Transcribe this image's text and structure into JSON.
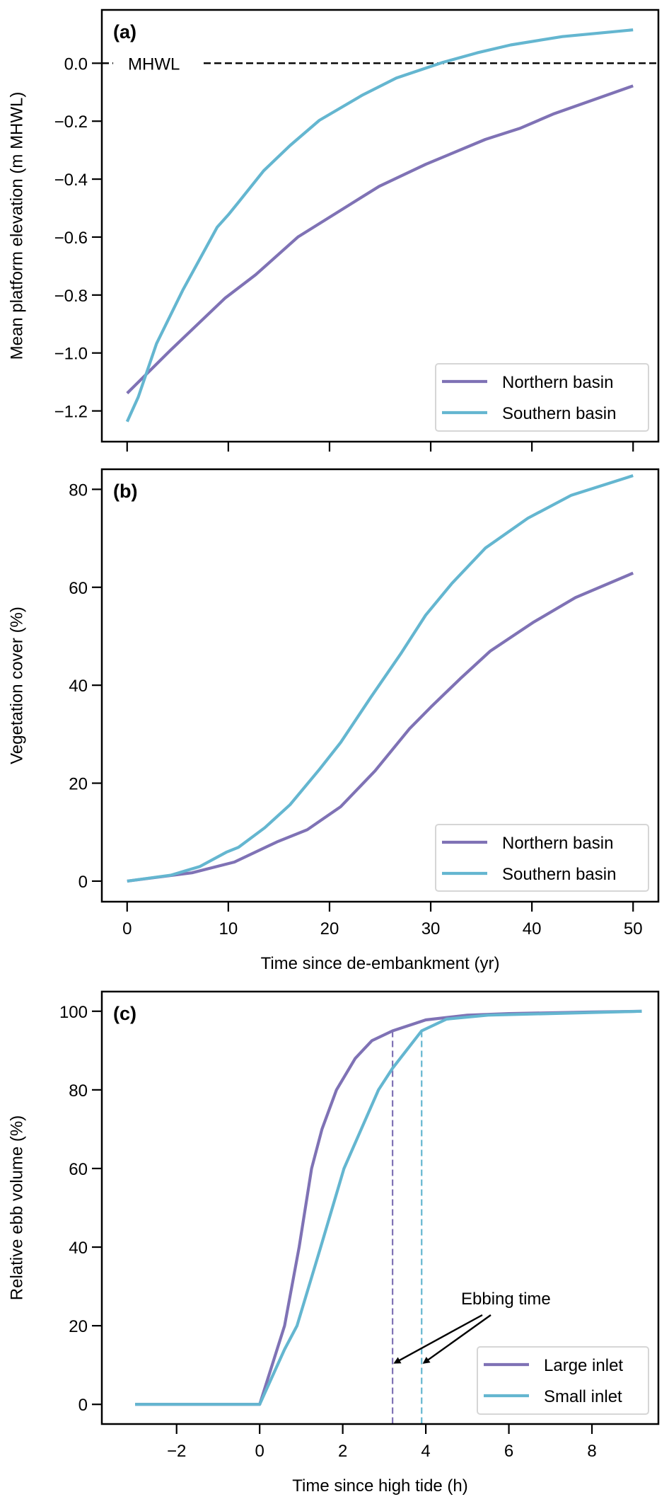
{
  "colors": {
    "northern": "#7f72b5",
    "southern": "#64b6d0",
    "reference": "#000000"
  },
  "chart_data": [
    {
      "panel_label": "(a)",
      "type": "line",
      "xlabel": "",
      "ylabel": "Mean platform elevation (m MHWL)",
      "xlim": [
        -2.5,
        52.5
      ],
      "ylim": [
        -1.306,
        0.184
      ],
      "xticks": [
        0,
        10,
        20,
        30,
        40,
        50
      ],
      "xtick_labels": [],
      "yticks": [
        0.0,
        -0.2,
        -0.4,
        -0.6,
        -0.8,
        -1.0,
        -1.2
      ],
      "ytick_labels": [
        "0.0",
        "−0.2",
        "−0.4",
        "−0.6",
        "−0.8",
        "−1.0",
        "−1.2"
      ],
      "reference_line": {
        "y": 0.0,
        "label": "MHWL",
        "style": "dashed"
      },
      "legend": {
        "placement": "lower-right",
        "entries": [
          "Northern basin",
          "Southern basin"
        ]
      },
      "series": [
        {
          "name": "Northern basin",
          "color_key": "northern",
          "x": [
            0,
            4.3,
            9.7,
            12.7,
            16.9,
            22,
            24.9,
            29.5,
            35.4,
            38.8,
            42.2,
            50
          ],
          "y": [
            -1.139,
            -0.99,
            -0.81,
            -0.73,
            -0.599,
            -0.488,
            -0.425,
            -0.349,
            -0.263,
            -0.225,
            -0.174,
            -0.078
          ]
        },
        {
          "name": "Southern basin",
          "color_key": "southern",
          "x": [
            0,
            1.1,
            2.9,
            5.5,
            8.9,
            10.0,
            11.0,
            13.5,
            16.1,
            19.0,
            23.2,
            26.6,
            31.2,
            34.6,
            37.9,
            43,
            50
          ],
          "y": [
            -1.237,
            -1.152,
            -0.968,
            -0.783,
            -0.566,
            -0.523,
            -0.48,
            -0.371,
            -0.284,
            -0.197,
            -0.111,
            -0.051,
            0.003,
            0.036,
            0.063,
            0.092,
            0.115
          ]
        }
      ]
    },
    {
      "panel_label": "(b)",
      "type": "line",
      "xlabel": "Time since de-embankment (yr)",
      "ylabel": "Vegetation cover (%)",
      "xlim": [
        -2.5,
        52.5
      ],
      "ylim": [
        -4.2,
        84.1
      ],
      "xticks": [
        0,
        10,
        20,
        30,
        40,
        50
      ],
      "xtick_labels": [
        "0",
        "10",
        "20",
        "30",
        "40",
        "50"
      ],
      "yticks": [
        0,
        20,
        40,
        60,
        80
      ],
      "ytick_labels": [
        "0",
        "20",
        "40",
        "60",
        "80"
      ],
      "legend": {
        "placement": "lower-right",
        "entries": [
          "Northern basin",
          "Southern basin"
        ]
      },
      "series": [
        {
          "name": "Northern basin",
          "color_key": "northern",
          "x": [
            0,
            6.4,
            10.6,
            14.8,
            17.8,
            21.1,
            24.5,
            27.9,
            30,
            32.9,
            35.9,
            40.1,
            44.3,
            50
          ],
          "y": [
            0,
            1.7,
            3.9,
            8,
            10.5,
            15.2,
            22.5,
            31.1,
            35.5,
            41.3,
            47,
            52.8,
            57.9,
            62.9
          ]
        },
        {
          "name": "Southern basin",
          "color_key": "southern",
          "x": [
            0,
            4.3,
            7.2,
            9.8,
            11,
            13.6,
            16.1,
            19,
            21.1,
            24.1,
            27,
            29.5,
            32.1,
            35.4,
            39.6,
            43.9,
            50
          ],
          "y": [
            0,
            1.2,
            3,
            5.9,
            6.9,
            10.9,
            15.6,
            22.8,
            28.3,
            37.6,
            46.3,
            54.3,
            60.8,
            68,
            74.1,
            78.8,
            82.8
          ]
        }
      ]
    },
    {
      "panel_label": "(c)",
      "type": "line",
      "xlabel": "Time since high tide (h)",
      "ylabel": "Relative ebb volume (%)",
      "xlim": [
        -3.8,
        9.6
      ],
      "ylim": [
        -5,
        105
      ],
      "xticks": [
        -2,
        0,
        2,
        4,
        6,
        8
      ],
      "xtick_labels": [
        "−2",
        "0",
        "2",
        "4",
        "6",
        "8"
      ],
      "yticks": [
        0,
        20,
        40,
        60,
        80,
        100
      ],
      "ytick_labels": [
        "0",
        "20",
        "40",
        "60",
        "80",
        "100"
      ],
      "vertical_lines": [
        {
          "x": 3.2,
          "color_key": "northern",
          "style": "dashed"
        },
        {
          "x": 3.9,
          "color_key": "southern",
          "style": "dashed"
        }
      ],
      "annotation": {
        "text": "Ebbing time",
        "arrows_to": [
          {
            "x": 3.2,
            "y": 10
          },
          {
            "x": 3.9,
            "y": 10
          }
        ]
      },
      "legend": {
        "placement": "lower-right",
        "entries": [
          "Large inlet",
          "Small inlet"
        ]
      },
      "series": [
        {
          "name": "Large inlet",
          "color_key": "northern",
          "x": [
            -3,
            0,
            0.3,
            0.6,
            0.95,
            1.25,
            1.5,
            1.85,
            2.3,
            2.7,
            3.2,
            4,
            5,
            6,
            8,
            9.2
          ],
          "y": [
            0,
            0,
            10,
            20,
            40,
            60,
            70,
            80,
            88,
            92.5,
            95,
            97.8,
            99,
            99.4,
            99.8,
            100
          ]
        },
        {
          "name": "Small inlet",
          "color_key": "southern",
          "x": [
            -3,
            0,
            0.6,
            0.9,
            1.47,
            2.03,
            2.86,
            3.2,
            3.9,
            4.5,
            5.5,
            9.2
          ],
          "y": [
            0,
            0,
            14,
            20,
            40,
            60,
            80,
            85.5,
            95,
            98,
            99,
            100
          ]
        }
      ]
    }
  ]
}
